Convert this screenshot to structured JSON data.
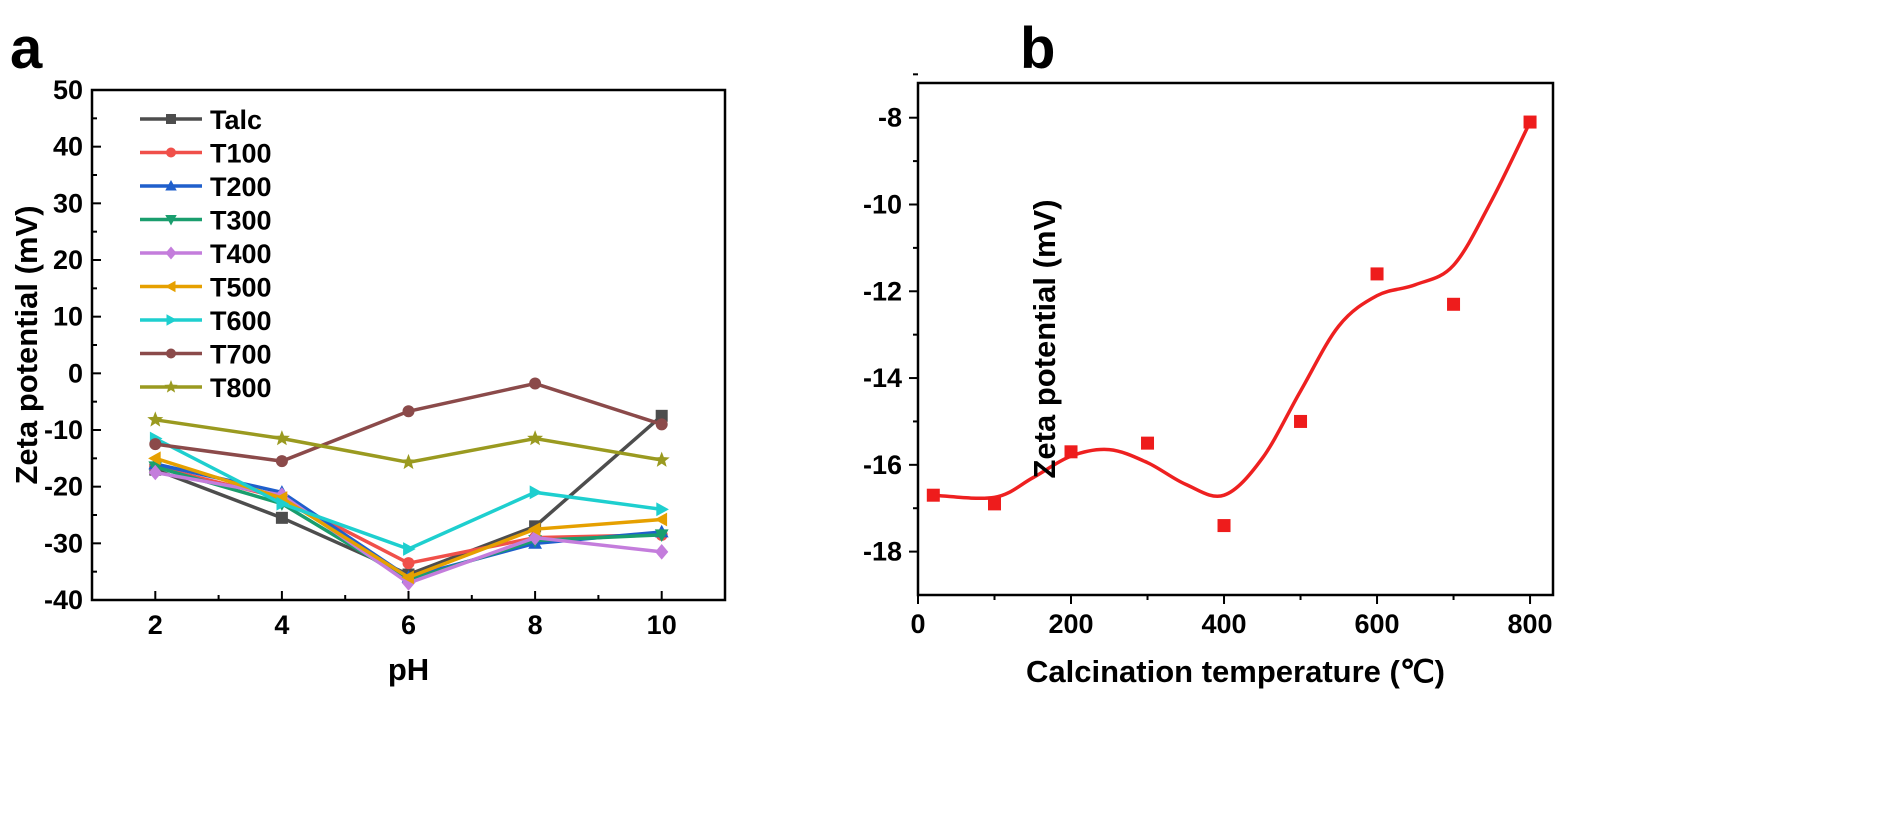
{
  "figure": {
    "panels": [
      "a",
      "b"
    ]
  },
  "chart_data": [
    {
      "type": "line",
      "panel": "a",
      "title": "",
      "xlabel": "pH",
      "ylabel": "Zeta potential (mV)",
      "xlim": [
        1,
        11
      ],
      "ylim": [
        -40,
        50
      ],
      "xticks": [
        2,
        4,
        6,
        8,
        10
      ],
      "yticks": [
        -40,
        -30,
        -20,
        -10,
        0,
        10,
        20,
        30,
        40,
        50
      ],
      "legend_position": "top-left",
      "grid": false,
      "x": [
        2,
        4,
        6,
        8,
        10
      ],
      "series": [
        {
          "name": "Talc",
          "color": "#4d4d4d",
          "marker": "square",
          "values": [
            -17,
            -25.5,
            -35.5,
            -27,
            -7.5
          ]
        },
        {
          "name": "T100",
          "color": "#f0504a",
          "marker": "circle",
          "values": [
            -16.5,
            -22,
            -33.5,
            -29,
            -28.5
          ]
        },
        {
          "name": "T200",
          "color": "#1f5fcc",
          "marker": "triangle-up",
          "values": [
            -16,
            -21,
            -36,
            -30,
            -28
          ]
        },
        {
          "name": "T300",
          "color": "#1a9e6e",
          "marker": "triangle-down",
          "values": [
            -16.5,
            -23,
            -36.5,
            -29.5,
            -28.5
          ]
        },
        {
          "name": "T400",
          "color": "#c47ddc",
          "marker": "diamond",
          "values": [
            -17.5,
            -21.5,
            -37,
            -29,
            -31.5
          ]
        },
        {
          "name": "T500",
          "color": "#e6a000",
          "marker": "triangle-left",
          "values": [
            -15,
            -22,
            -36,
            -27.5,
            -25.8
          ]
        },
        {
          "name": "T600",
          "color": "#1ecfcf",
          "marker": "triangle-right",
          "values": [
            -11.5,
            -23,
            -31,
            -21,
            -24
          ]
        },
        {
          "name": "T700",
          "color": "#8b4a4a",
          "marker": "circle",
          "values": [
            -12.5,
            -15.5,
            -6.7,
            -1.8,
            -9
          ]
        },
        {
          "name": "T800",
          "color": "#9a9a20",
          "marker": "star",
          "values": [
            -8.2,
            -11.5,
            -15.7,
            -11.5,
            -15.3
          ]
        }
      ]
    },
    {
      "type": "scatter",
      "panel": "b",
      "title": "",
      "xlabel": "Calcination temperature (℃)",
      "ylabel": "Zeta potential (mV)",
      "xlim": [
        0,
        830
      ],
      "ylim": [
        -19,
        -7.2
      ],
      "xticks": [
        0,
        200,
        400,
        600,
        800
      ],
      "yticks": [
        -18,
        -16,
        -14,
        -12,
        -10,
        -8
      ],
      "grid": false,
      "marker_color": "#ee1c1c",
      "curve_color": "#ee2020",
      "points": {
        "x": [
          20,
          100,
          200,
          300,
          400,
          500,
          600,
          700,
          800
        ],
        "y": [
          -16.7,
          -16.9,
          -15.7,
          -15.5,
          -17.4,
          -15,
          -11.6,
          -12.3,
          -8.1
        ]
      },
      "fit_curve": {
        "x": [
          20,
          100,
          150,
          200,
          250,
          300,
          350,
          400,
          450,
          500,
          550,
          600,
          650,
          700,
          750,
          800
        ],
        "y": [
          -16.7,
          -16.75,
          -16.3,
          -15.8,
          -15.65,
          -15.95,
          -16.45,
          -16.7,
          -15.85,
          -14.3,
          -12.8,
          -12.1,
          -11.85,
          -11.4,
          -9.9,
          -8.1
        ]
      }
    }
  ]
}
